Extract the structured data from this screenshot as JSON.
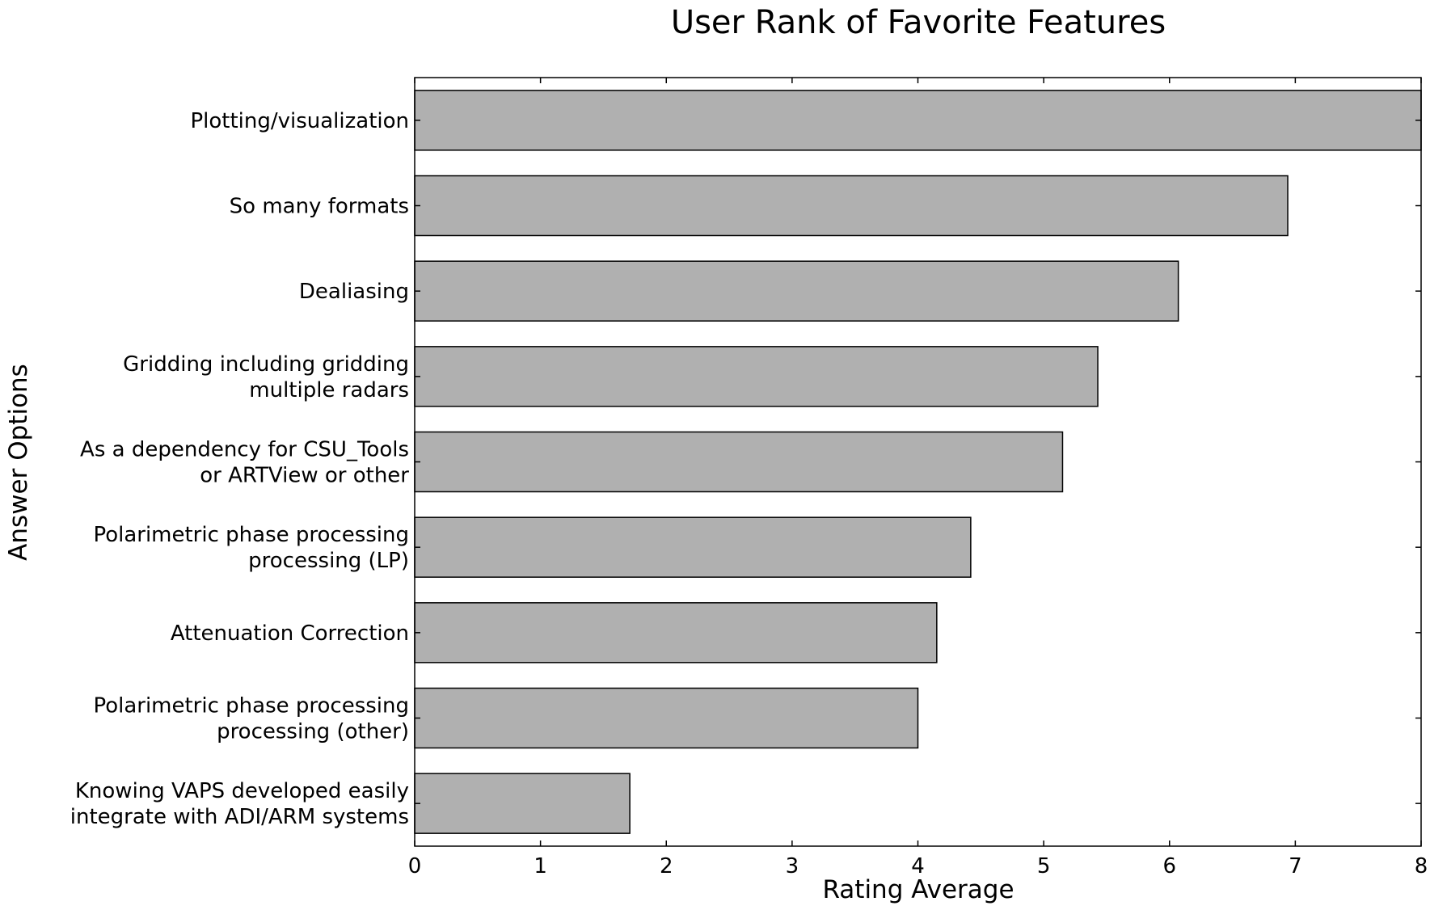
{
  "chart_data": {
    "type": "bar",
    "orientation": "horizontal",
    "title": "User Rank of Favorite Features",
    "xlabel": "Rating Average",
    "ylabel": "Answer Options",
    "xlim": [
      0,
      8
    ],
    "xticks": [
      0,
      1,
      2,
      3,
      4,
      5,
      6,
      7,
      8
    ],
    "grid": false,
    "bar_color": "#b0b0b0",
    "categories": [
      [
        "Plotting/visualization"
      ],
      [
        "So many formats"
      ],
      [
        "Dealiasing"
      ],
      [
        "Gridding including gridding",
        "multiple radars"
      ],
      [
        "As a dependency for CSU_Tools",
        "or ARTView or other"
      ],
      [
        "Polarimetric phase processing",
        "processing (LP)"
      ],
      [
        "Attenuation Correction"
      ],
      [
        "Polarimetric phase processing",
        "processing (other)"
      ],
      [
        "Knowing VAPS developed easily",
        "integrate with ADI/ARM systems"
      ]
    ],
    "values": [
      8.0,
      6.94,
      6.07,
      5.43,
      5.15,
      4.42,
      4.15,
      4.0,
      1.71
    ]
  }
}
